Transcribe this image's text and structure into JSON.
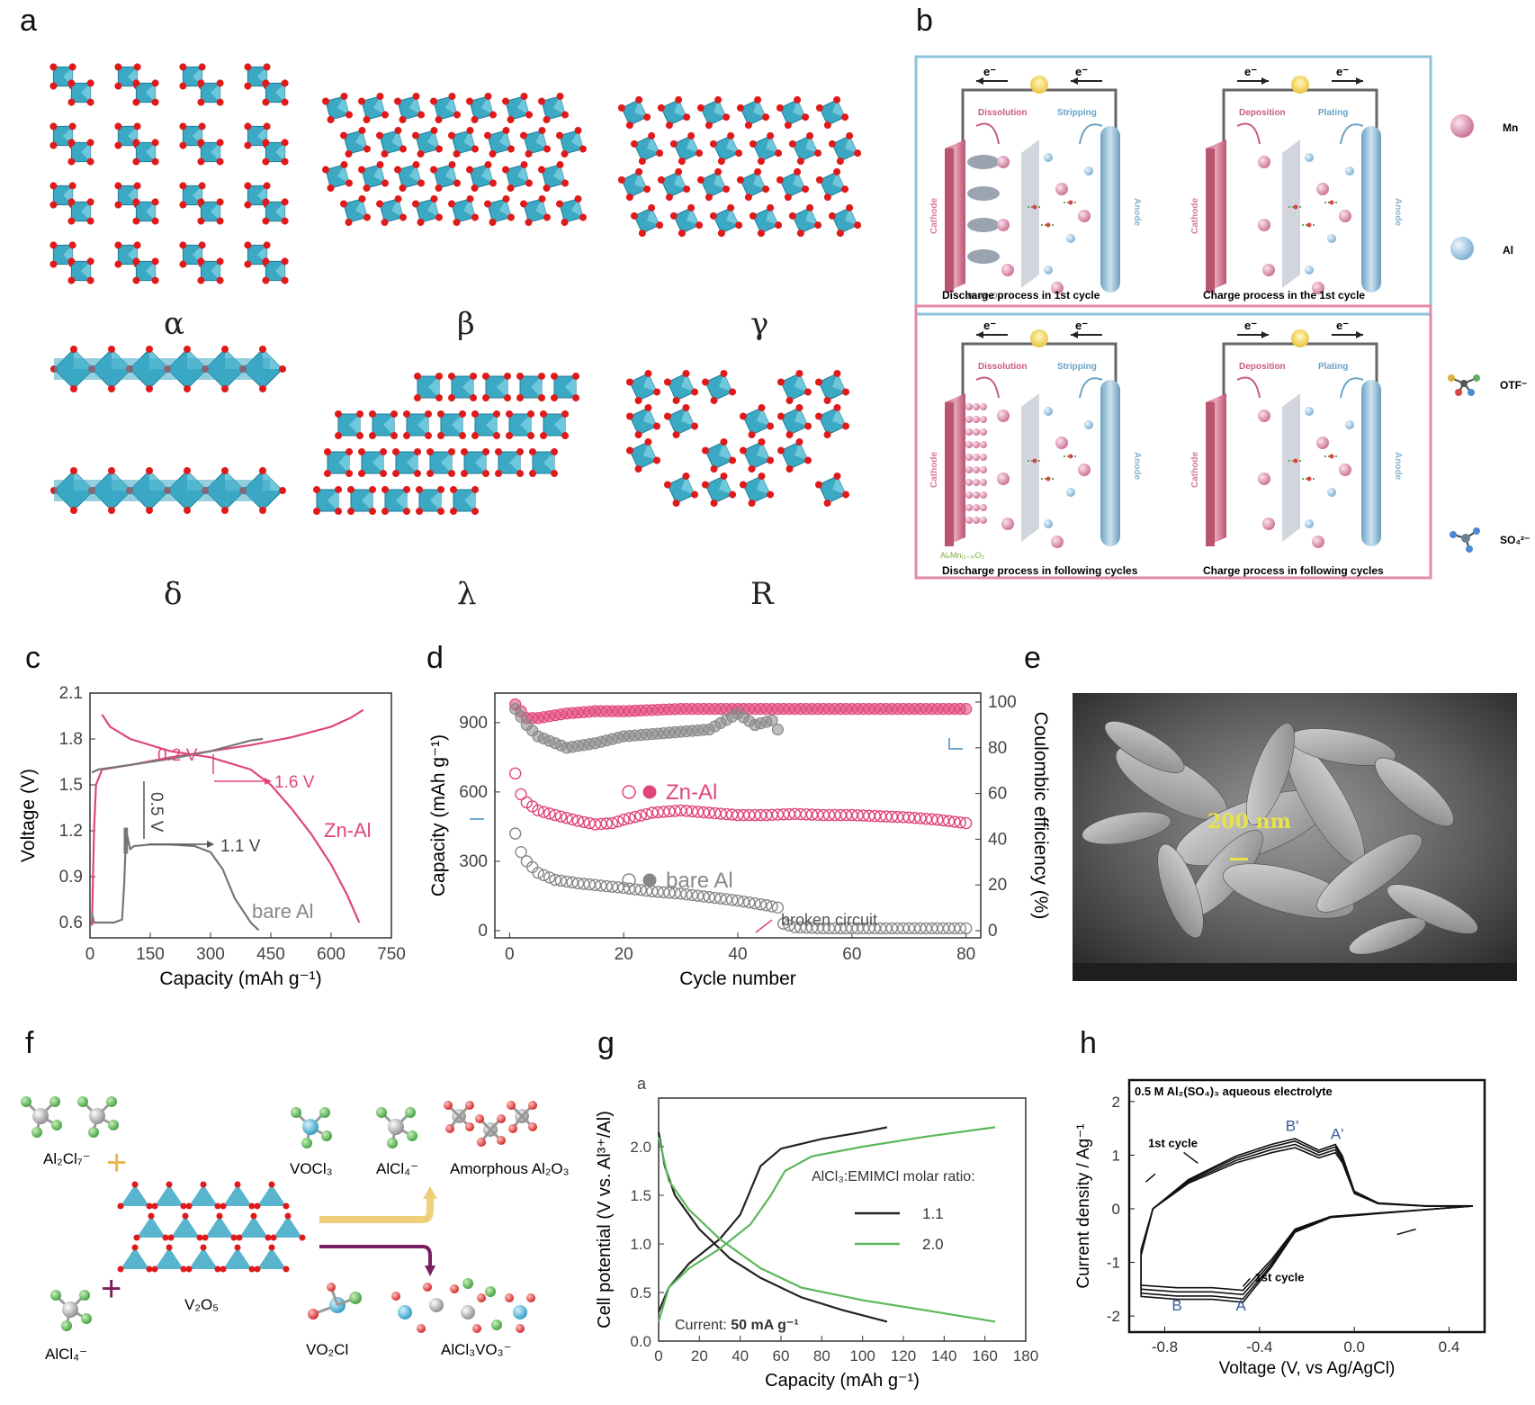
{
  "panels": {
    "a": {
      "letter": "a",
      "structures": [
        "α",
        "β",
        "γ",
        "δ",
        "λ",
        "R"
      ]
    },
    "b": {
      "letter": "b",
      "electron": "e⁻",
      "dissolution": "Dissolution",
      "stripping": "Stripping",
      "deposition": "Deposition",
      "plating": "Plating",
      "cathode": "Cathode",
      "anode": "Anode",
      "bir": "Bir-MnO₂",
      "alx": "AlₓMn₍₁₋ₓ₎O₂",
      "captions": [
        "Discharge process in 1st cycle",
        "Charge process in the 1st cycle",
        "Discharge process in following cycles",
        "Charge process in following cycles"
      ],
      "legend": [
        "Mn",
        "Al",
        "OTF⁻",
        "SO₄²⁻"
      ],
      "colors": {
        "top_border": "#8fc3dc",
        "bottom_border": "#e28aa8",
        "cathode": "#d77c98",
        "anode": "#8ab7d3",
        "mn": "#d98aab",
        "al": "#9cc7e3"
      }
    },
    "c": {
      "letter": "c"
    },
    "d": {
      "letter": "d"
    },
    "e": {
      "letter": "e",
      "scale": "200 nm"
    },
    "f": {
      "letter": "f",
      "labels": [
        "Al₂Cl₇⁻",
        "AlCl₄⁻",
        "V₂O₅",
        "VOCl₃",
        "AlCl₄⁻",
        "Amorphous Al₂O₃",
        "VO₂Cl",
        "AlCl₃VO₃⁻"
      ],
      "plus": "+"
    },
    "g": {
      "letter": "g",
      "sublabel": "a"
    },
    "h": {
      "letter": "h"
    }
  },
  "chart_data": [
    {
      "panel": "c",
      "type": "line",
      "xlabel": "Capacity (mAh g⁻¹)",
      "ylabel": "Voltage (V)",
      "xlim": [
        0,
        750
      ],
      "ylim": [
        0.5,
        2.1
      ],
      "xticks": [
        0,
        150,
        300,
        450,
        600,
        750
      ],
      "yticks": [
        0.6,
        0.9,
        1.2,
        1.5,
        1.8,
        2.1
      ],
      "series": [
        {
          "name": "Zn-Al",
          "color": "#e0457b",
          "charge": [
            [
              5,
              0.58
            ],
            [
              10,
              1.2
            ],
            [
              15,
              1.5
            ],
            [
              30,
              1.6
            ],
            [
              100,
              1.63
            ],
            [
              200,
              1.68
            ],
            [
              300,
              1.72
            ],
            [
              400,
              1.76
            ],
            [
              500,
              1.81
            ],
            [
              600,
              1.88
            ],
            [
              650,
              1.94
            ],
            [
              680,
              1.99
            ]
          ],
          "discharge": [
            [
              30,
              1.96
            ],
            [
              50,
              1.88
            ],
            [
              100,
              1.8
            ],
            [
              200,
              1.72
            ],
            [
              300,
              1.68
            ],
            [
              400,
              1.6
            ],
            [
              450,
              1.5
            ],
            [
              500,
              1.35
            ],
            [
              550,
              1.18
            ],
            [
              600,
              0.98
            ],
            [
              640,
              0.78
            ],
            [
              670,
              0.6
            ]
          ]
        },
        {
          "name": "bare Al",
          "color": "#777777",
          "charge": [
            [
              5,
              1.58
            ],
            [
              20,
              1.6
            ],
            [
              100,
              1.63
            ],
            [
              200,
              1.67
            ],
            [
              300,
              1.72
            ],
            [
              400,
              1.79
            ],
            [
              430,
              1.8
            ]
          ],
          "discharge": [
            [
              5,
              0.66
            ],
            [
              10,
              0.6
            ],
            [
              30,
              0.6
            ],
            [
              60,
              0.6
            ],
            [
              80,
              0.62
            ],
            [
              85,
              0.85
            ],
            [
              90,
              1.2
            ],
            [
              100,
              1.08
            ],
            [
              110,
              1.1
            ],
            [
              150,
              1.11
            ],
            [
              200,
              1.11
            ],
            [
              260,
              1.1
            ],
            [
              300,
              1.06
            ],
            [
              330,
              0.95
            ],
            [
              360,
              0.76
            ],
            [
              400,
              0.6
            ],
            [
              420,
              0.55
            ]
          ]
        }
      ],
      "annotations": [
        "0.2 V",
        "1.6 V",
        "0.5 V",
        "1.1 V",
        "Zn-Al",
        "bare Al"
      ]
    },
    {
      "panel": "d",
      "type": "scatter",
      "xlabel": "Cycle number",
      "ylabel": "Capacity (mAh g⁻¹)",
      "y2label": "Coulombic efficiency (%)",
      "xlim": [
        0,
        80
      ],
      "ylim": [
        0,
        950
      ],
      "y2lim": [
        0,
        100
      ],
      "xticks": [
        0,
        20,
        40,
        60,
        80
      ],
      "yticks": [
        0,
        300,
        600,
        900
      ],
      "y2ticks": [
        0,
        20,
        40,
        60,
        80,
        100
      ],
      "series": [
        {
          "name": "Zn-Al",
          "color": "#e0457b",
          "capacity": [
            [
              1,
              680
            ],
            [
              2,
              590
            ],
            [
              3,
              555
            ],
            [
              5,
              520
            ],
            [
              8,
              500
            ],
            [
              12,
              475
            ],
            [
              15,
              460
            ],
            [
              18,
              465
            ],
            [
              20,
              480
            ],
            [
              25,
              510
            ],
            [
              30,
              520
            ],
            [
              35,
              510
            ],
            [
              40,
              500
            ],
            [
              45,
              500
            ],
            [
              50,
              505
            ],
            [
              55,
              500
            ],
            [
              60,
              500
            ],
            [
              65,
              495
            ],
            [
              70,
              490
            ],
            [
              75,
              480
            ],
            [
              80,
              465
            ]
          ],
          "ce": [
            [
              1,
              99
            ],
            [
              3,
              93
            ],
            [
              5,
              93
            ],
            [
              10,
              95
            ],
            [
              15,
              96
            ],
            [
              20,
              96
            ],
            [
              30,
              97
            ],
            [
              40,
              97
            ],
            [
              50,
              97
            ],
            [
              60,
              97
            ],
            [
              70,
              97
            ],
            [
              80,
              97
            ]
          ]
        },
        {
          "name": "bare Al",
          "color": "#888888",
          "capacity": [
            [
              1,
              420
            ],
            [
              2,
              340
            ],
            [
              3,
              300
            ],
            [
              5,
              250
            ],
            [
              8,
              220
            ],
            [
              12,
              205
            ],
            [
              16,
              195
            ],
            [
              20,
              185
            ],
            [
              25,
              170
            ],
            [
              30,
              160
            ],
            [
              35,
              145
            ],
            [
              40,
              130
            ],
            [
              45,
              110
            ],
            [
              47,
              100
            ],
            [
              48,
              30
            ],
            [
              50,
              15
            ],
            [
              55,
              10
            ],
            [
              60,
              10
            ],
            [
              70,
              10
            ],
            [
              80,
              10
            ]
          ],
          "ce": [
            [
              1,
              97
            ],
            [
              3,
              90
            ],
            [
              5,
              85
            ],
            [
              8,
              82
            ],
            [
              10,
              80
            ],
            [
              15,
              82
            ],
            [
              20,
              85
            ],
            [
              25,
              86
            ],
            [
              30,
              87
            ],
            [
              35,
              88
            ],
            [
              40,
              95
            ],
            [
              43,
              90
            ],
            [
              46,
              92
            ],
            [
              47,
              88
            ]
          ]
        }
      ],
      "annotations": [
        "Zn-Al",
        "bare Al",
        "broken circuit"
      ]
    },
    {
      "panel": "g",
      "type": "line",
      "xlabel": "Capacity (mAh g⁻¹)",
      "ylabel": "Cell potential (V vs. Al³⁺/Al)",
      "xlim": [
        0,
        180
      ],
      "ylim": [
        0,
        2.5
      ],
      "xticks": [
        0,
        20,
        40,
        60,
        80,
        100,
        120,
        140,
        160,
        180
      ],
      "yticks": [
        0.0,
        0.5,
        1.0,
        1.5,
        2.0
      ],
      "legend_title": "AlCl₃:EMIMCl molar ratio:",
      "annotation": "Current:",
      "annotation_bold": "50 mA g⁻¹",
      "series": [
        {
          "name": "1.1",
          "color": "#222222",
          "charge": [
            [
              0,
              0.3
            ],
            [
              5,
              0.55
            ],
            [
              15,
              0.8
            ],
            [
              30,
              1.05
            ],
            [
              40,
              1.3
            ],
            [
              45,
              1.55
            ],
            [
              50,
              1.8
            ],
            [
              60,
              1.98
            ],
            [
              80,
              2.08
            ],
            [
              100,
              2.15
            ],
            [
              112,
              2.2
            ]
          ],
          "discharge": [
            [
              0,
              2.15
            ],
            [
              3,
              1.8
            ],
            [
              8,
              1.5
            ],
            [
              20,
              1.15
            ],
            [
              35,
              0.85
            ],
            [
              50,
              0.65
            ],
            [
              70,
              0.45
            ],
            [
              90,
              0.32
            ],
            [
              112,
              0.2
            ]
          ]
        },
        {
          "name": "2.0",
          "color": "#5bb75b",
          "charge": [
            [
              0,
              0.2
            ],
            [
              5,
              0.55
            ],
            [
              15,
              0.75
            ],
            [
              30,
              0.95
            ],
            [
              45,
              1.2
            ],
            [
              55,
              1.5
            ],
            [
              62,
              1.75
            ],
            [
              75,
              1.9
            ],
            [
              100,
              2.0
            ],
            [
              130,
              2.1
            ],
            [
              165,
              2.2
            ]
          ],
          "discharge": [
            [
              0,
              2.1
            ],
            [
              5,
              1.65
            ],
            [
              15,
              1.35
            ],
            [
              30,
              1.05
            ],
            [
              50,
              0.75
            ],
            [
              70,
              0.55
            ],
            [
              100,
              0.42
            ],
            [
              130,
              0.32
            ],
            [
              165,
              0.2
            ]
          ]
        }
      ]
    },
    {
      "panel": "h",
      "type": "line",
      "xlabel": "Voltage (V, vs Ag/AgCl)",
      "ylabel": "Current density / Ag⁻¹",
      "xlim": [
        -0.95,
        0.55
      ],
      "ylim": [
        -2.3,
        2.4
      ],
      "xticks": [
        -0.8,
        -0.4,
        0.0,
        0.4
      ],
      "yticks": [
        -2,
        -1,
        0,
        1,
        2
      ],
      "title": "0.5 M Al₂(SO₄)₃ aqueous electrolyte",
      "peaks": [
        "B'",
        "A'",
        "B",
        "A"
      ],
      "cycle_labels": [
        "1st cycle",
        "1st cycle"
      ],
      "series": [
        {
          "name": "CV",
          "color": "#111111",
          "points": [
            [
              0.5,
              0.05
            ],
            [
              0.3,
              0.05
            ],
            [
              0.1,
              0.1
            ],
            [
              0.0,
              0.3
            ],
            [
              -0.05,
              0.9
            ],
            [
              -0.08,
              1.1
            ],
            [
              -0.15,
              1.0
            ],
            [
              -0.25,
              1.2
            ],
            [
              -0.35,
              1.1
            ],
            [
              -0.5,
              0.9
            ],
            [
              -0.7,
              0.5
            ],
            [
              -0.85,
              0.0
            ],
            [
              -0.9,
              -0.8
            ],
            [
              -0.9,
              -1.5
            ],
            [
              -0.75,
              -1.55
            ],
            [
              -0.6,
              -1.55
            ],
            [
              -0.47,
              -1.6
            ],
            [
              -0.35,
              -1.0
            ],
            [
              -0.25,
              -0.4
            ],
            [
              -0.1,
              -0.15
            ],
            [
              0.2,
              -0.05
            ],
            [
              0.5,
              0.05
            ]
          ]
        }
      ]
    }
  ]
}
